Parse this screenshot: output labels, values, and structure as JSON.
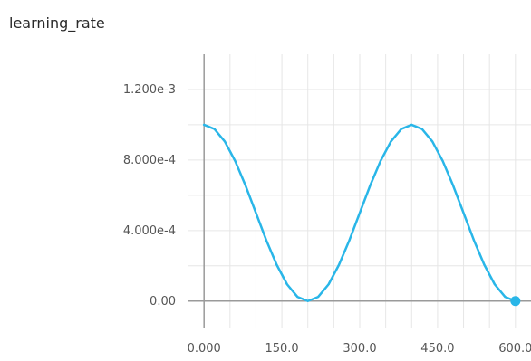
{
  "chart_data": {
    "type": "line",
    "title": "learning_rate",
    "xlabel": "",
    "ylabel": "",
    "xlim": [
      -30,
      630
    ],
    "ylim": [
      -0.00015,
      0.0014
    ],
    "x_ticks": [
      0,
      150,
      300,
      450,
      600
    ],
    "x_tick_labels": [
      "0.000",
      "150.0",
      "300.0",
      "450.0",
      "600.0"
    ],
    "y_ticks": [
      0,
      0.0004,
      0.0008,
      0.0012
    ],
    "y_tick_labels": [
      "0.00",
      "4.000e-4",
      "8.000e-4",
      "1.200e-3"
    ],
    "grid": true,
    "series": [
      {
        "x": [
          0,
          20,
          40,
          60,
          80,
          100,
          120,
          140,
          160,
          180,
          200,
          220,
          240,
          260,
          280,
          300,
          320,
          340,
          360,
          380,
          400,
          420,
          440,
          460,
          480,
          500,
          520,
          540,
          560,
          580,
          600
        ],
        "y": [
          0.001,
          0.000976,
          0.000905,
          0.000794,
          0.000655,
          0.0005,
          0.000345,
          0.000206,
          9.5e-05,
          2.4e-05,
          0.0,
          2.4e-05,
          9.5e-05,
          0.000206,
          0.000345,
          0.0005,
          0.000655,
          0.000794,
          0.000905,
          0.000976,
          0.001,
          0.000976,
          0.000905,
          0.000794,
          0.000655,
          0.0005,
          0.000345,
          0.000206,
          9.5e-05,
          2.4e-05,
          0.0
        ],
        "color": "#29b6e8"
      }
    ],
    "marker_point": {
      "x": 600,
      "y": 0.0
    }
  }
}
